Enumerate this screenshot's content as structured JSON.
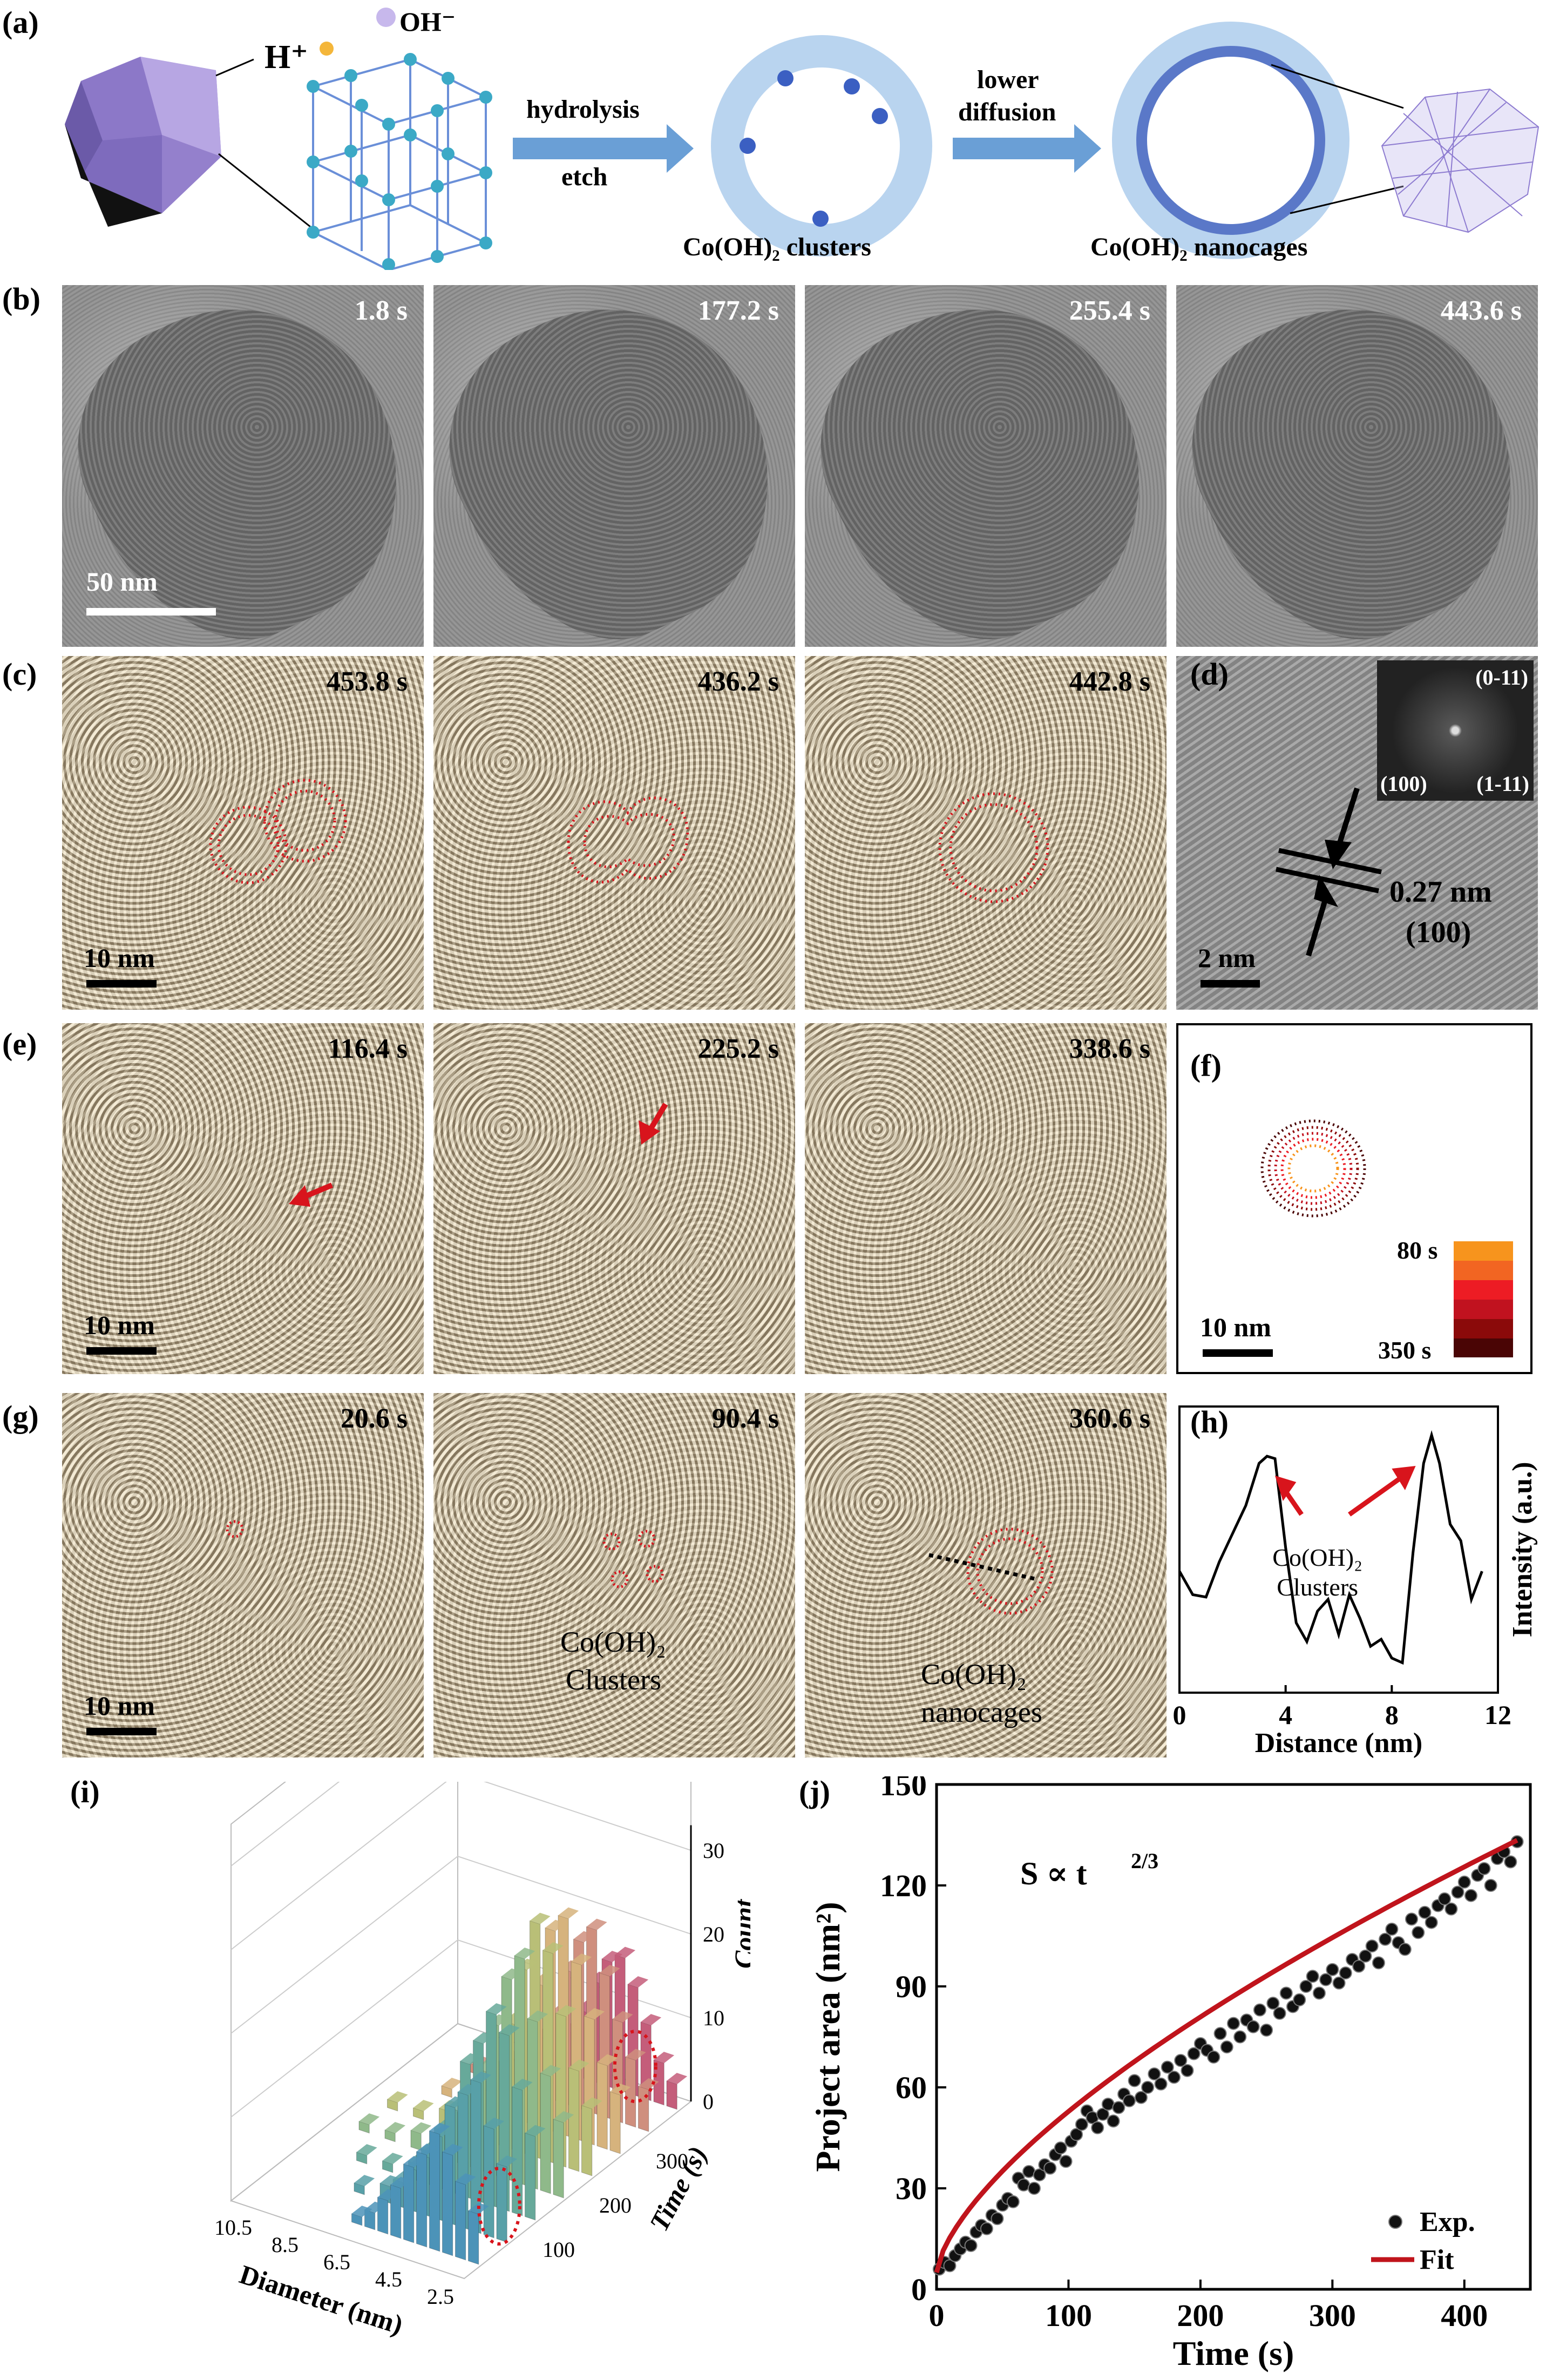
{
  "panel_labels": {
    "a": "(a)",
    "b": "(b)",
    "c": "(c)",
    "d": "(d)",
    "e": "(e)",
    "f": "(f)",
    "g": "(g)",
    "h": "(h)",
    "i": "(i)",
    "j": "(j)"
  },
  "panel_a": {
    "h_plus": "H⁺",
    "oh_minus": "OH⁻",
    "arrow1_top": "hydrolysis",
    "arrow1_bottom": "etch",
    "clusters_label": "Co(OH)₂ clusters",
    "arrow2_top": "lower",
    "arrow2_bottom": "diffusion",
    "nanocages_label": "Co(OH)₂ nanocages"
  },
  "panel_b": {
    "times": [
      "1.8 s",
      "177.2 s",
      "255.4 s",
      "443.6 s"
    ],
    "scale": "50 nm"
  },
  "panel_c": {
    "times": [
      "453.8 s",
      "436.2 s",
      "442.8 s"
    ],
    "scale": "10 nm"
  },
  "panel_d": {
    "fft_top": "(0-11)",
    "fft_left": "(100)",
    "fft_right": "(1-11)",
    "spacing": "0.27 nm",
    "plane": "(100)",
    "scale": "2 nm"
  },
  "panel_e": {
    "times": [
      "116.4 s",
      "225.2 s",
      "338.6 s"
    ],
    "scale": "10 nm"
  },
  "panel_f": {
    "legend_top": "80 s",
    "legend_bottom": "350 s",
    "scale": "10 nm",
    "colors": [
      "#f7941d",
      "#f26522",
      "#ed1c24",
      "#c1121f",
      "#8b0a0a",
      "#4a0505"
    ]
  },
  "panel_g": {
    "times": [
      "20.6 s",
      "90.4 s",
      "360.6 s"
    ],
    "clusters_label_1": "Co(OH)₂",
    "clusters_label_2": "Clusters",
    "nanocages_label_1": "Co(OH)₂",
    "nanocages_label_2": "nanocages",
    "scale": "10 nm"
  },
  "chart_data": [
    {
      "id": "h",
      "type": "line",
      "xlabel": "Distance (nm)",
      "ylabel": "Intensity (a.u.)",
      "xlim": [
        0,
        12
      ],
      "xticks": [
        0,
        4,
        8,
        12
      ],
      "annotation_1": "Co(OH)₂",
      "annotation_2": "Clusters",
      "x": [
        0,
        0.5,
        1.0,
        1.5,
        2.0,
        2.5,
        3.0,
        3.3,
        3.6,
        4.0,
        4.4,
        4.8,
        5.2,
        5.6,
        6.0,
        6.4,
        6.8,
        7.2,
        7.6,
        8.0,
        8.4,
        8.8,
        9.2,
        9.5,
        9.8,
        10.2,
        10.6,
        11.0,
        11.4
      ],
      "y": [
        0.42,
        0.32,
        0.31,
        0.46,
        0.58,
        0.7,
        0.88,
        0.91,
        0.9,
        0.52,
        0.2,
        0.12,
        0.25,
        0.3,
        0.15,
        0.32,
        0.22,
        0.1,
        0.13,
        0.05,
        0.03,
        0.5,
        0.88,
        1.0,
        0.88,
        0.62,
        0.55,
        0.3,
        0.42
      ]
    },
    {
      "id": "i",
      "type": "bar",
      "subtype": "3d-histogram",
      "xlabel": "Diameter (nm)",
      "ylabel": "Time (s)",
      "zlabel": "Count",
      "diameter_ticks": [
        "10.5",
        "8.5",
        "6.5",
        "4.5",
        "2.5"
      ],
      "time_ticks": [
        "100",
        "200",
        "300"
      ],
      "count_ticks": [
        "0",
        "10",
        "20",
        "30"
      ],
      "diameters": [
        2.5,
        3.0,
        3.5,
        4.0,
        4.5,
        5.0,
        5.5,
        6.0,
        6.5,
        7.0,
        8.0,
        9.0,
        10.0
      ],
      "series": [
        {
          "name": "",
          "time": 30,
          "values": [
            6,
            9,
            12,
            14,
            11,
            9,
            6,
            4,
            2,
            1,
            0,
            0,
            0
          ]
        },
        {
          "name": "",
          "time": 80,
          "values": [
            9,
            13,
            18,
            16,
            14,
            10,
            7,
            5,
            3,
            2,
            1,
            0,
            0
          ]
        },
        {
          "name": "",
          "time": 130,
          "values": [
            10,
            15,
            21,
            23,
            19,
            16,
            10,
            7,
            4,
            2,
            1,
            1,
            0
          ]
        },
        {
          "name": "",
          "time": 180,
          "values": [
            9,
            14,
            20,
            27,
            24,
            18,
            12,
            8,
            5,
            3,
            2,
            1,
            1
          ]
        },
        {
          "name": "",
          "time": 230,
          "values": [
            8,
            12,
            18,
            25,
            28,
            22,
            15,
            9,
            6,
            3,
            2,
            1,
            1
          ]
        },
        {
          "name": "",
          "time": 280,
          "values": [
            7,
            10,
            15,
            21,
            26,
            24,
            17,
            11,
            7,
            4,
            2,
            1,
            0
          ]
        },
        {
          "name": "",
          "time": 330,
          "values": [
            5,
            8,
            12,
            17,
            22,
            20,
            16,
            10,
            7,
            4,
            2,
            1,
            0
          ]
        },
        {
          "name": "",
          "time": 380,
          "values": [
            3,
            5,
            9,
            13,
            16,
            15,
            12,
            8,
            5,
            3,
            1,
            0,
            0
          ]
        }
      ]
    },
    {
      "id": "j",
      "type": "scatter",
      "xlabel": "Time (s)",
      "ylabel": "Project area (nm²)",
      "xlim": [
        0,
        450
      ],
      "ylim": [
        0,
        150
      ],
      "xticks": [
        0,
        100,
        200,
        300,
        400
      ],
      "yticks": [
        0,
        30,
        60,
        90,
        120,
        150
      ],
      "annotation": "S ∝ t",
      "annotation_exp": "2/3",
      "legend": [
        "Exp.",
        "Fit"
      ],
      "fit": {
        "name": "Fit",
        "model": "S = a + b·t^(2/3)",
        "a": 5,
        "b": 2.22
      },
      "series": [
        {
          "name": "Exp.",
          "x": [
            2,
            6,
            10,
            14,
            18,
            22,
            26,
            30,
            34,
            38,
            42,
            46,
            50,
            54,
            58,
            62,
            66,
            70,
            74,
            78,
            82,
            86,
            90,
            94,
            98,
            102,
            106,
            110,
            114,
            118,
            122,
            126,
            130,
            134,
            138,
            142,
            146,
            150,
            155,
            160,
            165,
            170,
            175,
            180,
            185,
            190,
            195,
            200,
            205,
            210,
            215,
            220,
            225,
            230,
            235,
            240,
            245,
            250,
            255,
            260,
            265,
            270,
            275,
            280,
            285,
            290,
            295,
            300,
            305,
            310,
            315,
            320,
            325,
            330,
            335,
            340,
            345,
            350,
            355,
            360,
            365,
            370,
            375,
            380,
            385,
            390,
            395,
            400,
            405,
            410,
            415,
            420,
            425,
            430,
            435,
            440
          ],
          "y": [
            6,
            8,
            7,
            10,
            12,
            14,
            13,
            17,
            19,
            18,
            22,
            21,
            25,
            27,
            26,
            33,
            31,
            35,
            30,
            34,
            37,
            36,
            40,
            42,
            38,
            44,
            46,
            49,
            53,
            51,
            48,
            52,
            55,
            50,
            54,
            58,
            56,
            62,
            57,
            60,
            64,
            61,
            66,
            63,
            68,
            65,
            70,
            73,
            71,
            69,
            76,
            72,
            79,
            75,
            80,
            78,
            83,
            77,
            85,
            82,
            88,
            84,
            86,
            90,
            93,
            88,
            92,
            95,
            91,
            94,
            98,
            96,
            99,
            102,
            97,
            104,
            107,
            103,
            101,
            110,
            106,
            112,
            109,
            114,
            116,
            113,
            118,
            121,
            117,
            123,
            125,
            120,
            128,
            130,
            127,
            133
          ]
        }
      ]
    }
  ]
}
